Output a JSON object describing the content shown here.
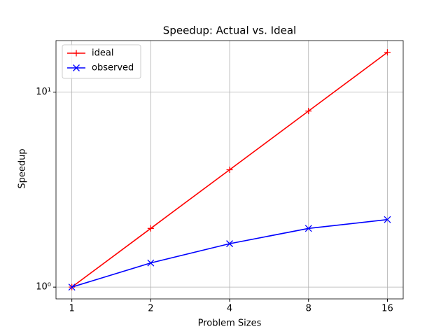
{
  "chart_data": {
    "type": "line",
    "title": "Speedup: Actual vs. Ideal",
    "x_label": "Problem Sizes",
    "y_label": "Speedup",
    "x": [
      1,
      2,
      4,
      8,
      16
    ],
    "series": [
      {
        "name": "ideal",
        "color": "#ff0000",
        "marker": "+",
        "values": [
          1,
          2,
          4,
          8,
          16
        ]
      },
      {
        "name": "observed",
        "color": "#0000ff",
        "marker": "x",
        "values": [
          1,
          1.33,
          1.67,
          2,
          2.22
        ]
      }
    ],
    "x_scale": "log2",
    "y_scale": "log10",
    "xlim": [
      0.87,
      18.38
    ],
    "ylim": [
      0.87,
      18.38
    ],
    "xticks": [
      1,
      2,
      4,
      8,
      16
    ],
    "yticks": [
      {
        "value": 1,
        "label": "10⁰"
      },
      {
        "value": 10,
        "label": "10¹"
      }
    ],
    "grid": true,
    "legend": "upper left"
  }
}
